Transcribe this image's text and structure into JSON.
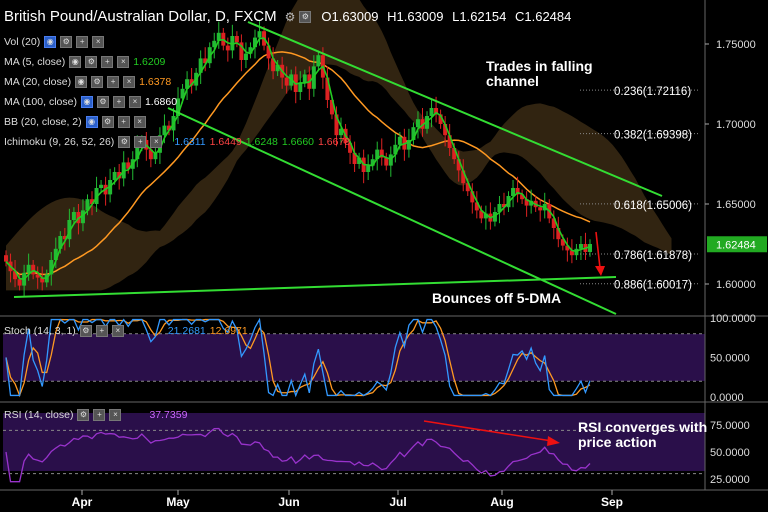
{
  "header": {
    "title": "British Pound/Australian Dollar, D, FXCM",
    "open": "O1.63009",
    "high": "H1.63009",
    "low": "L1.62154",
    "close": "C1.62484"
  },
  "indicators": [
    {
      "label": "Vol (20)",
      "value": "",
      "color": "#ffffff"
    },
    {
      "label": "MA (5, close)",
      "value": "1.6209",
      "color": "#22cc22"
    },
    {
      "label": "MA (20, close)",
      "value": "1.6378",
      "color": "#ff9922"
    },
    {
      "label": "MA (100, close)",
      "value": "1.6860",
      "color": "#ffffff"
    },
    {
      "label": "BB (20, close, 2)",
      "value": "",
      "color": "#ffffff"
    }
  ],
  "ichimoku": {
    "label": "Ichimoku (9, 26, 52, 26)",
    "values": [
      "1.6311",
      "1.6449",
      "1.6248",
      "1.6660",
      "1.6678"
    ],
    "colors": [
      "#3399ff",
      "#ff4444",
      "#22cc22",
      "#22cc22",
      "#ff4444"
    ]
  },
  "stoch": {
    "label": "Stoch (14, 3, 1)",
    "values": [
      "21.2681",
      "12.6971"
    ],
    "colors": [
      "#3399ff",
      "#ff9922"
    ]
  },
  "rsi": {
    "label": "RSI (14, close)",
    "values": [
      "37.7359"
    ],
    "color": "#cc66ff"
  },
  "annotations": {
    "channel_line1": "Trades in falling",
    "channel_line2": "channel",
    "bounce": "Bounces off 5-DMA",
    "rsi_line1": "RSI converges with",
    "rsi_line2": "price action"
  },
  "colors": {
    "bull": "#22bb33",
    "bear": "#dd2222",
    "ma5": "#22cc22",
    "ma20": "#ff9922",
    "channel": "#33dd33",
    "rsi": "#9933cc",
    "stoch_k": "#3399ff",
    "stoch_d": "#ff9922",
    "axis_bg": "#ffffff",
    "last_price_bg": "#22aa22"
  },
  "chart_data": {
    "type": "candlestick",
    "x_labels": [
      "Apr",
      "May",
      "Jun",
      "Jul",
      "Aug",
      "Sep"
    ],
    "price_ticks": [
      "1.75000",
      "1.70000",
      "1.65000",
      "1.60000"
    ],
    "last_price": "1.62484",
    "fib_levels": [
      {
        "label": "0.236(1.72116)",
        "value": 1.72116
      },
      {
        "label": "0.382(1.69398)",
        "value": 1.69398
      },
      {
        "label": "0.618(1.65006)",
        "value": 1.65006
      },
      {
        "label": "0.786(1.61878)",
        "value": 1.61878
      },
      {
        "label": "0.886(1.60017)",
        "value": 1.60017
      }
    ],
    "closes": [
      1.614,
      1.608,
      1.603,
      1.599,
      1.607,
      1.612,
      1.606,
      1.604,
      1.601,
      1.606,
      1.615,
      1.622,
      1.63,
      1.628,
      1.64,
      1.645,
      1.638,
      1.646,
      1.653,
      1.65,
      1.66,
      1.662,
      1.656,
      1.665,
      1.67,
      1.666,
      1.676,
      1.672,
      1.678,
      1.686,
      1.69,
      1.684,
      1.678,
      1.682,
      1.693,
      1.699,
      1.696,
      1.705,
      1.716,
      1.722,
      1.728,
      1.724,
      1.732,
      1.741,
      1.738,
      1.748,
      1.752,
      1.757,
      1.749,
      1.746,
      1.755,
      1.751,
      1.74,
      1.744,
      1.748,
      1.754,
      1.758,
      1.749,
      1.741,
      1.733,
      1.737,
      1.729,
      1.724,
      1.731,
      1.72,
      1.726,
      1.731,
      1.722,
      1.736,
      1.743,
      1.729,
      1.715,
      1.706,
      1.693,
      1.697,
      1.688,
      1.682,
      1.675,
      1.679,
      1.67,
      1.674,
      1.678,
      1.684,
      1.679,
      1.674,
      1.681,
      1.687,
      1.692,
      1.684,
      1.69,
      1.698,
      1.703,
      1.697,
      1.705,
      1.71,
      1.706,
      1.7,
      1.693,
      1.685,
      1.678,
      1.671,
      1.663,
      1.658,
      1.651,
      1.646,
      1.641,
      1.644,
      1.639,
      1.645,
      1.65,
      1.648,
      1.655,
      1.66,
      1.656,
      1.653,
      1.649,
      1.652,
      1.648,
      1.646,
      1.65,
      1.641,
      1.635,
      1.628,
      1.624,
      1.621,
      1.618,
      1.622,
      1.625,
      1.62,
      1.625
    ],
    "stoch": {
      "ticks": [
        "100.0000",
        "50.0000",
        "0.0000"
      ],
      "levels": [
        80,
        20
      ],
      "k_last": 21.2681,
      "d_last": 12.6971
    },
    "rsi": {
      "ticks": [
        "75.0000",
        "50.0000",
        "25.0000"
      ],
      "levels": [
        70,
        30
      ],
      "last": 37.7359
    }
  }
}
